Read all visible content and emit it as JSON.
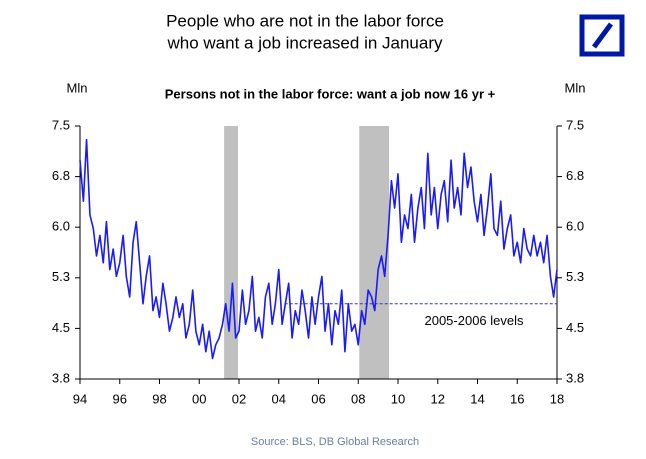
{
  "chart_data": {
    "type": "line",
    "title": "People who are not in the labor force",
    "title_line2": "who want a job increased in January",
    "subtitle": "Persons not in the labor force: want a job now 16 yr +",
    "y_unit_left": "Mln",
    "y_unit_right": "Mln",
    "source": "Source: BLS, DB Global Research",
    "xlim": [
      1994,
      2018
    ],
    "xticks": [
      {
        "value": 1994,
        "label": "94"
      },
      {
        "value": 1996,
        "label": "96"
      },
      {
        "value": 1998,
        "label": "98"
      },
      {
        "value": 2000,
        "label": "00"
      },
      {
        "value": 2002,
        "label": "02"
      },
      {
        "value": 2004,
        "label": "04"
      },
      {
        "value": 2006,
        "label": "06"
      },
      {
        "value": 2008,
        "label": "08"
      },
      {
        "value": 2010,
        "label": "10"
      },
      {
        "value": 2012,
        "label": "12"
      },
      {
        "value": 2014,
        "label": "14"
      },
      {
        "value": 2016,
        "label": "16"
      },
      {
        "value": 2018,
        "label": "18"
      }
    ],
    "ylim": [
      3.8,
      7.5
    ],
    "yticks": [
      3.8,
      {
        "value": 4.54,
        "label": "4.5"
      },
      {
        "value": 5.28,
        "label": "5.3"
      },
      {
        "value": 6.02,
        "label": "6.0"
      },
      {
        "value": 6.76,
        "label": "6.8"
      },
      7.5
    ],
    "y2lim": [
      3.8,
      7.5
    ],
    "y2ticks": [
      3.8,
      {
        "value": 4.54,
        "label": "4.5"
      },
      {
        "value": 5.28,
        "label": "5.3"
      },
      {
        "value": 6.02,
        "label": "6.0"
      },
      {
        "value": 6.76,
        "label": "6.8"
      },
      7.5
    ],
    "shaded_periods": [
      [
        2001.25,
        2001.95
      ],
      [
        2008.05,
        2009.55
      ]
    ],
    "shade_color": "#c0c0c0",
    "reference_line": {
      "value": 4.9,
      "x": [
        2004.3,
        2018
      ],
      "label": "2005-2006 levels",
      "color": "#3333cc"
    },
    "series": [
      {
        "name": "Persons not in the labor force: want a job now 16 yr +",
        "color": "#1a1aff",
        "x": [
          1994,
          1994.17,
          1994.33,
          1994.5,
          1994.67,
          1994.83,
          1995,
          1995.17,
          1995.33,
          1995.5,
          1995.67,
          1995.83,
          1996,
          1996.17,
          1996.33,
          1996.5,
          1996.67,
          1996.83,
          1997,
          1997.17,
          1997.33,
          1997.5,
          1997.67,
          1997.83,
          1998,
          1998.17,
          1998.33,
          1998.5,
          1998.67,
          1998.83,
          1999,
          1999.17,
          1999.33,
          1999.5,
          1999.67,
          1999.83,
          2000,
          2000.17,
          2000.33,
          2000.5,
          2000.67,
          2000.83,
          2001,
          2001.17,
          2001.33,
          2001.5,
          2001.67,
          2001.83,
          2002,
          2002.17,
          2002.33,
          2002.5,
          2002.67,
          2002.83,
          2003,
          2003.17,
          2003.33,
          2003.5,
          2003.67,
          2003.83,
          2004,
          2004.17,
          2004.33,
          2004.5,
          2004.67,
          2004.83,
          2005,
          2005.17,
          2005.33,
          2005.5,
          2005.67,
          2005.83,
          2006,
          2006.17,
          2006.33,
          2006.5,
          2006.67,
          2006.83,
          2007,
          2007.17,
          2007.33,
          2007.5,
          2007.67,
          2007.83,
          2008,
          2008.17,
          2008.33,
          2008.5,
          2008.67,
          2008.83,
          2009,
          2009.17,
          2009.33,
          2009.5,
          2009.67,
          2009.83,
          2010,
          2010.17,
          2010.33,
          2010.5,
          2010.67,
          2010.83,
          2011,
          2011.17,
          2011.33,
          2011.5,
          2011.67,
          2011.83,
          2012,
          2012.17,
          2012.33,
          2012.5,
          2012.67,
          2012.83,
          2013,
          2013.17,
          2013.33,
          2013.5,
          2013.67,
          2013.83,
          2014,
          2014.17,
          2014.33,
          2014.5,
          2014.67,
          2014.83,
          2015,
          2015.17,
          2015.33,
          2015.5,
          2015.67,
          2015.83,
          2016,
          2016.17,
          2016.33,
          2016.5,
          2016.67,
          2016.83,
          2017,
          2017.17,
          2017.33,
          2017.5,
          2017.67,
          2017.83,
          2018
        ],
        "values": [
          7.0,
          6.4,
          7.3,
          6.2,
          6.0,
          5.6,
          5.9,
          5.5,
          6.1,
          5.4,
          5.7,
          5.3,
          5.5,
          5.9,
          5.3,
          5.0,
          5.8,
          6.1,
          5.5,
          4.9,
          5.3,
          5.6,
          4.8,
          5.0,
          4.7,
          5.2,
          4.9,
          4.5,
          4.7,
          5.0,
          4.7,
          4.9,
          4.4,
          4.6,
          5.1,
          4.5,
          4.3,
          4.6,
          4.2,
          4.5,
          4.1,
          4.3,
          4.4,
          4.6,
          4.9,
          4.5,
          5.2,
          4.4,
          4.5,
          5.1,
          4.6,
          4.8,
          5.3,
          4.5,
          4.7,
          4.4,
          5.0,
          5.2,
          4.6,
          4.9,
          5.4,
          4.6,
          4.9,
          5.2,
          4.4,
          4.8,
          4.6,
          5.1,
          4.8,
          4.4,
          5.0,
          4.6,
          5.0,
          5.3,
          4.5,
          4.9,
          4.3,
          4.8,
          4.6,
          5.1,
          4.2,
          4.9,
          4.5,
          4.6,
          4.3,
          4.8,
          4.6,
          5.1,
          5.0,
          4.8,
          5.4,
          5.6,
          5.3,
          5.9,
          6.7,
          6.3,
          6.8,
          5.8,
          6.2,
          6.0,
          6.5,
          5.8,
          6.3,
          6.6,
          6.0,
          7.1,
          6.2,
          6.6,
          6.0,
          6.5,
          6.7,
          6.1,
          7.0,
          6.3,
          6.6,
          6.2,
          7.1,
          6.6,
          6.9,
          6.4,
          6.1,
          6.5,
          5.9,
          6.3,
          6.8,
          6.0,
          5.9,
          6.4,
          5.7,
          6.0,
          6.2,
          5.6,
          5.8,
          5.5,
          6.0,
          5.7,
          5.6,
          5.9,
          5.6,
          5.8,
          5.5,
          5.9,
          5.3,
          5.0,
          5.4
        ]
      }
    ]
  }
}
